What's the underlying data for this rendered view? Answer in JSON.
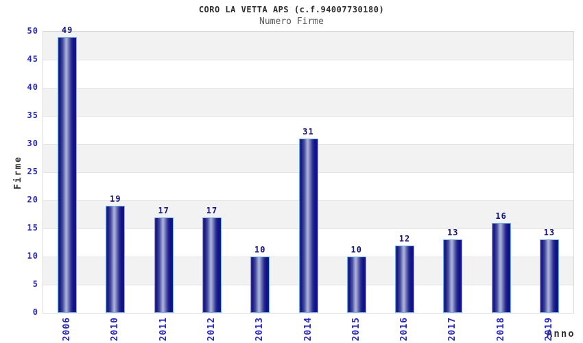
{
  "chart_data": {
    "type": "bar",
    "title": "CORO LA VETTA APS (c.f.94007730180)",
    "subtitle": "Numero Firme",
    "xlabel": "Anno",
    "ylabel": "Firme",
    "categories": [
      "2006",
      "2010",
      "2011",
      "2012",
      "2013",
      "2014",
      "2015",
      "2016",
      "2017",
      "2018",
      "2019"
    ],
    "values": [
      49,
      19,
      17,
      17,
      10,
      31,
      10,
      12,
      13,
      16,
      13
    ],
    "ylim": [
      0,
      50
    ],
    "ytick_step": 5,
    "yticks": [
      0,
      5,
      10,
      15,
      20,
      25,
      30,
      35,
      40,
      45,
      50
    ],
    "grid": true,
    "band_fill": "alternating-horizontal",
    "legend": "none",
    "bar_value_labels": true,
    "colors": {
      "bar_dark": "#15157e",
      "bar_light": "#adb3dc",
      "bar_border": "#6fb0ee",
      "tick_label": "#2525cf",
      "value_label": "#13137a",
      "axis_title": "#333333",
      "title": "#2d2d2d",
      "subtitle": "#5a5a5a",
      "band": "#f2f2f2",
      "gridline": "#e3e3e3",
      "plot_border": "#d9d9d9",
      "background": "#ffffff"
    }
  }
}
